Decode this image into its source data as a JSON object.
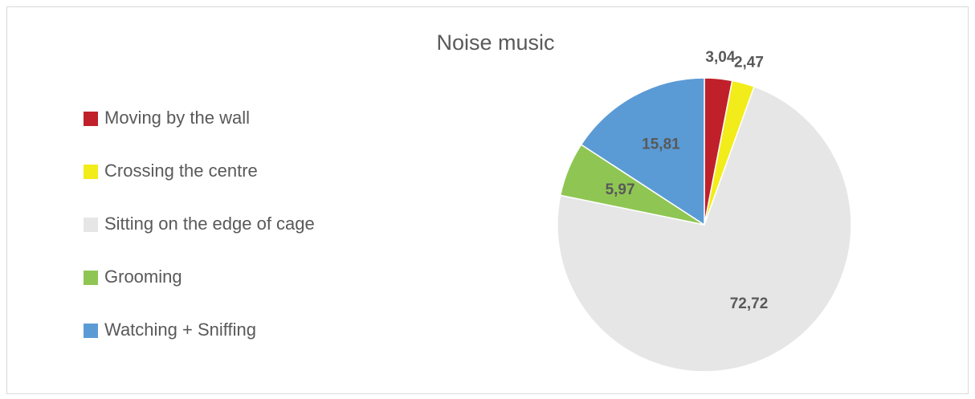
{
  "chart_data": {
    "type": "pie",
    "title": "Noise music",
    "categories": [
      "Moving by the wall",
      "Crossing the centre",
      "Sitting on the edge of cage",
      "Grooming",
      "Watching + Sniffing"
    ],
    "values": [
      3.04,
      2.47,
      72.72,
      5.97,
      15.81
    ],
    "value_labels": [
      "3,04",
      "2,47",
      "72,72",
      "5,97",
      "15,81"
    ],
    "colors": [
      "#c0202a",
      "#f2ec1a",
      "#e6e6e6",
      "#8fc653",
      "#5b9bd5"
    ],
    "legend": "left"
  }
}
